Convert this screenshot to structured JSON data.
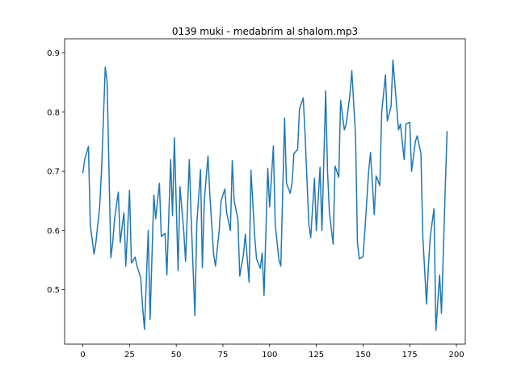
{
  "chart_data": {
    "type": "line",
    "title": "0139 muki - medabrim al shalom.mp3",
    "x": [
      0,
      1,
      3,
      4,
      6,
      7,
      9,
      10,
      12,
      13,
      15,
      16,
      17,
      19,
      20,
      22,
      23,
      25,
      26,
      28,
      29,
      31,
      32,
      33,
      35,
      36,
      38,
      39,
      41,
      42,
      44,
      45,
      47,
      48,
      49,
      51,
      52,
      54,
      55,
      57,
      58,
      60,
      61,
      63,
      64,
      65,
      67,
      68,
      70,
      71,
      73,
      74,
      76,
      77,
      79,
      80,
      81,
      83,
      84,
      86,
      87,
      89,
      90,
      92,
      93,
      95,
      96,
      97,
      99,
      100,
      102,
      103,
      105,
      106,
      108,
      109,
      111,
      112,
      113,
      115,
      116,
      118,
      119,
      121,
      122,
      124,
      125,
      127,
      128,
      130,
      131,
      132,
      134,
      135,
      137,
      138,
      140,
      141,
      143,
      144,
      146,
      147,
      148,
      150,
      151,
      153,
      154,
      156,
      157,
      159,
      160,
      162,
      163,
      165,
      166,
      168,
      169,
      170,
      172,
      173,
      175,
      176,
      178,
      179,
      181,
      182,
      184,
      185,
      186,
      188,
      189,
      191,
      192,
      194,
      195
    ],
    "series": [
      {
        "color": "#1f77b4",
        "values": [
          0.697,
          0.72,
          0.742,
          0.61,
          0.56,
          0.58,
          0.64,
          0.7,
          0.876,
          0.85,
          0.554,
          0.58,
          0.62,
          0.665,
          0.58,
          0.63,
          0.54,
          0.668,
          0.545,
          0.555,
          0.54,
          0.52,
          0.47,
          0.433,
          0.6,
          0.45,
          0.66,
          0.62,
          0.68,
          0.59,
          0.595,
          0.525,
          0.72,
          0.625,
          0.757,
          0.532,
          0.674,
          0.6,
          0.548,
          0.72,
          0.62,
          0.456,
          0.61,
          0.703,
          0.537,
          0.65,
          0.726,
          0.66,
          0.56,
          0.54,
          0.6,
          0.65,
          0.67,
          0.63,
          0.6,
          0.718,
          0.65,
          0.62,
          0.523,
          0.56,
          0.594,
          0.513,
          0.702,
          0.59,
          0.552,
          0.536,
          0.562,
          0.49,
          0.705,
          0.64,
          0.743,
          0.61,
          0.55,
          0.54,
          0.79,
          0.68,
          0.663,
          0.68,
          0.73,
          0.737,
          0.806,
          0.824,
          0.76,
          0.61,
          0.588,
          0.688,
          0.6,
          0.707,
          0.6,
          0.836,
          0.7,
          0.63,
          0.577,
          0.709,
          0.69,
          0.82,
          0.77,
          0.78,
          0.83,
          0.87,
          0.76,
          0.58,
          0.552,
          0.556,
          0.6,
          0.7,
          0.732,
          0.627,
          0.692,
          0.676,
          0.8,
          0.863,
          0.785,
          0.81,
          0.888,
          0.81,
          0.77,
          0.78,
          0.72,
          0.78,
          0.783,
          0.7,
          0.75,
          0.76,
          0.73,
          0.59,
          0.476,
          0.54,
          0.59,
          0.637,
          0.431,
          0.525,
          0.46,
          0.67,
          0.768
        ]
      }
    ],
    "xlim": [
      -9.75,
      204.75
    ],
    "xticks": [
      0,
      25,
      50,
      75,
      100,
      125,
      150,
      175,
      200
    ],
    "ylim": [
      0.408,
      0.924
    ],
    "yticks": [
      0.5,
      0.6,
      0.7,
      0.8,
      0.9
    ]
  }
}
